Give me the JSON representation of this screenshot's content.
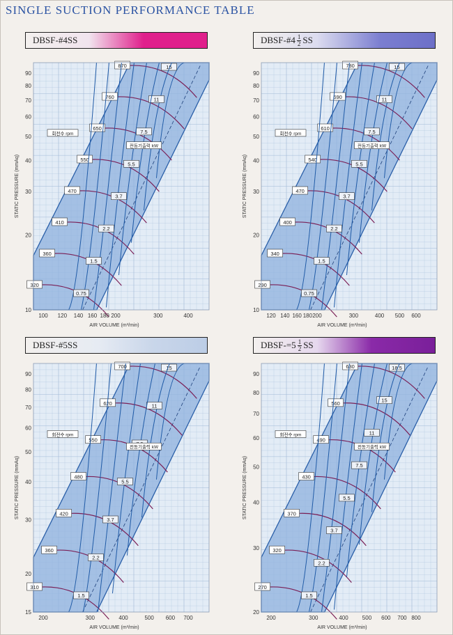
{
  "page_title": "SINGLE SUCTION PERFORMANCE TABLE",
  "common": {
    "y_label": "STATIC PRESSURE (mmAq)",
    "x_label": "AIR VOLUME (m³/min)",
    "rpm_label": "회전수 rpm",
    "kw_label": "전동기출력 kW"
  },
  "colors": {
    "band": "#8fb2de",
    "band_edge": "#2a5fa8",
    "rpm_curve": "#7a1e55",
    "kw_curve": "#1f5aa6",
    "grid_bg": "#e3ecf6",
    "grid_line": "#9fb8d6"
  },
  "charts": [
    {
      "title": "DBSF-#4SS",
      "title_prefix": "DBSF-#4",
      "title_suffix": "SS",
      "frac": null,
      "y_ticks": [
        "90",
        "80",
        "70",
        "60",
        "50",
        "40",
        "30",
        "20",
        "10"
      ],
      "x_ticks": [
        "100",
        "120",
        "140",
        "160",
        "180",
        "200",
        "300",
        "400"
      ],
      "rpm": [
        "870",
        "760",
        "650",
        "550",
        "470",
        "410",
        "360",
        "320"
      ],
      "kw": [
        "15",
        "11",
        "7.5",
        "5.5",
        "3.7",
        "2.2",
        "1.5",
        "0.75"
      ]
    },
    {
      "title": "DBSF-#4 1/2 SS",
      "title_prefix": "DBSF-#4",
      "title_suffix": "SS",
      "frac": {
        "num": "1",
        "den": "2"
      },
      "y_ticks": [
        "90",
        "80",
        "70",
        "60",
        "50",
        "40",
        "30",
        "20",
        "10"
      ],
      "x_ticks": [
        "120",
        "140",
        "160",
        "180",
        "200",
        "300",
        "400",
        "500",
        "600"
      ],
      "rpm": [
        "780",
        "690",
        "610",
        "540",
        "470",
        "400",
        "340",
        "290"
      ],
      "kw": [
        "15",
        "11",
        "7.5",
        "5.5",
        "3.7",
        "2.2",
        "1.5",
        "0.75"
      ]
    },
    {
      "title": "DBSF-#5SS",
      "title_prefix": "DBSF-#5",
      "title_suffix": "SS",
      "frac": null,
      "y_ticks": [
        "90",
        "80",
        "70",
        "60",
        "50",
        "40",
        "30",
        "20",
        "15"
      ],
      "x_ticks": [
        "200",
        "300",
        "400",
        "500",
        "600",
        "700"
      ],
      "rpm": [
        "700",
        "620",
        "550",
        "480",
        "420",
        "360",
        "310"
      ],
      "kw": [
        "15",
        "11",
        "7.5",
        "5.5",
        "3.7",
        "2.2",
        "1.5"
      ]
    },
    {
      "title": "DBSF-=5 1/2 SS",
      "title_prefix": "DBSF-=5",
      "title_suffix": "SS",
      "frac": {
        "num": "1",
        "den": "2"
      },
      "y_ticks": [
        "90",
        "80",
        "70",
        "60",
        "50",
        "40",
        "30",
        "20"
      ],
      "x_ticks": [
        "200",
        "300",
        "400",
        "500",
        "600",
        "700",
        "800"
      ],
      "rpm": [
        "630",
        "560",
        "490",
        "430",
        "370",
        "320",
        "270"
      ],
      "kw": [
        "18.5",
        "15",
        "11",
        "7.5",
        "5.5",
        "3.7",
        "2.2",
        "1.5"
      ]
    }
  ]
}
